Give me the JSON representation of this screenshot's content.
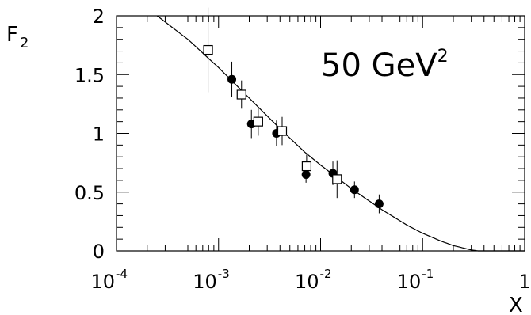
{
  "chart_data": {
    "type": "scatter",
    "title": "",
    "annotation": {
      "text": "50 GeV",
      "superscript": "2"
    },
    "xlabel": "X",
    "ylabel": {
      "main": "F",
      "sub": "2"
    },
    "x_scale": "log",
    "xlim": [
      0.0001,
      1
    ],
    "ylim": [
      0,
      2
    ],
    "grid": false,
    "legend": "none",
    "x_ticks": [
      {
        "value": 0.0001,
        "base": "10",
        "exp": "-4"
      },
      {
        "value": 0.001,
        "base": "10",
        "exp": "-3"
      },
      {
        "value": 0.01,
        "base": "10",
        "exp": "-2"
      },
      {
        "value": 0.1,
        "base": "10",
        "exp": "-1"
      },
      {
        "value": 1,
        "base": "1",
        "exp": ""
      }
    ],
    "y_ticks": [
      {
        "value": 0,
        "label": "0"
      },
      {
        "value": 0.5,
        "label": "0.5"
      },
      {
        "value": 1,
        "label": "1"
      },
      {
        "value": 1.5,
        "label": "1.5"
      },
      {
        "value": 2,
        "label": "2"
      }
    ],
    "series": [
      {
        "marker": "filled-circle",
        "points": [
          {
            "x": 0.00135,
            "y": 1.46,
            "err": 0.15
          },
          {
            "x": 0.0021,
            "y": 1.08,
            "err": 0.12
          },
          {
            "x": 0.0037,
            "y": 1.0,
            "err": 0.11
          },
          {
            "x": 0.0072,
            "y": 0.65,
            "err": 0.07
          },
          {
            "x": 0.0132,
            "y": 0.66,
            "err": 0.1
          },
          {
            "x": 0.0215,
            "y": 0.52,
            "err": 0.07
          },
          {
            "x": 0.0375,
            "y": 0.4,
            "err": 0.08
          }
        ]
      },
      {
        "marker": "open-square",
        "points": [
          {
            "x": 0.00079,
            "y": 1.71,
            "err": 0.36
          },
          {
            "x": 0.00168,
            "y": 1.33,
            "err": 0.12
          },
          {
            "x": 0.00245,
            "y": 1.1,
            "err": 0.12
          },
          {
            "x": 0.0042,
            "y": 1.02,
            "err": 0.12
          },
          {
            "x": 0.0073,
            "y": 0.72,
            "err": 0.1
          },
          {
            "x": 0.0145,
            "y": 0.61,
            "err": 0.16
          }
        ]
      }
    ],
    "curve": [
      {
        "x": 0.00025,
        "y": 2.0
      },
      {
        "x": 0.0005,
        "y": 1.8
      },
      {
        "x": 0.001,
        "y": 1.56
      },
      {
        "x": 0.002,
        "y": 1.3
      },
      {
        "x": 0.004,
        "y": 1.04
      },
      {
        "x": 0.007,
        "y": 0.84
      },
      {
        "x": 0.01,
        "y": 0.73
      },
      {
        "x": 0.02,
        "y": 0.53
      },
      {
        "x": 0.04,
        "y": 0.35
      },
      {
        "x": 0.07,
        "y": 0.22
      },
      {
        "x": 0.1,
        "y": 0.15
      },
      {
        "x": 0.15,
        "y": 0.085
      },
      {
        "x": 0.2,
        "y": 0.045
      },
      {
        "x": 0.3,
        "y": 0.008
      },
      {
        "x": 0.35,
        "y": 0.0
      }
    ]
  }
}
